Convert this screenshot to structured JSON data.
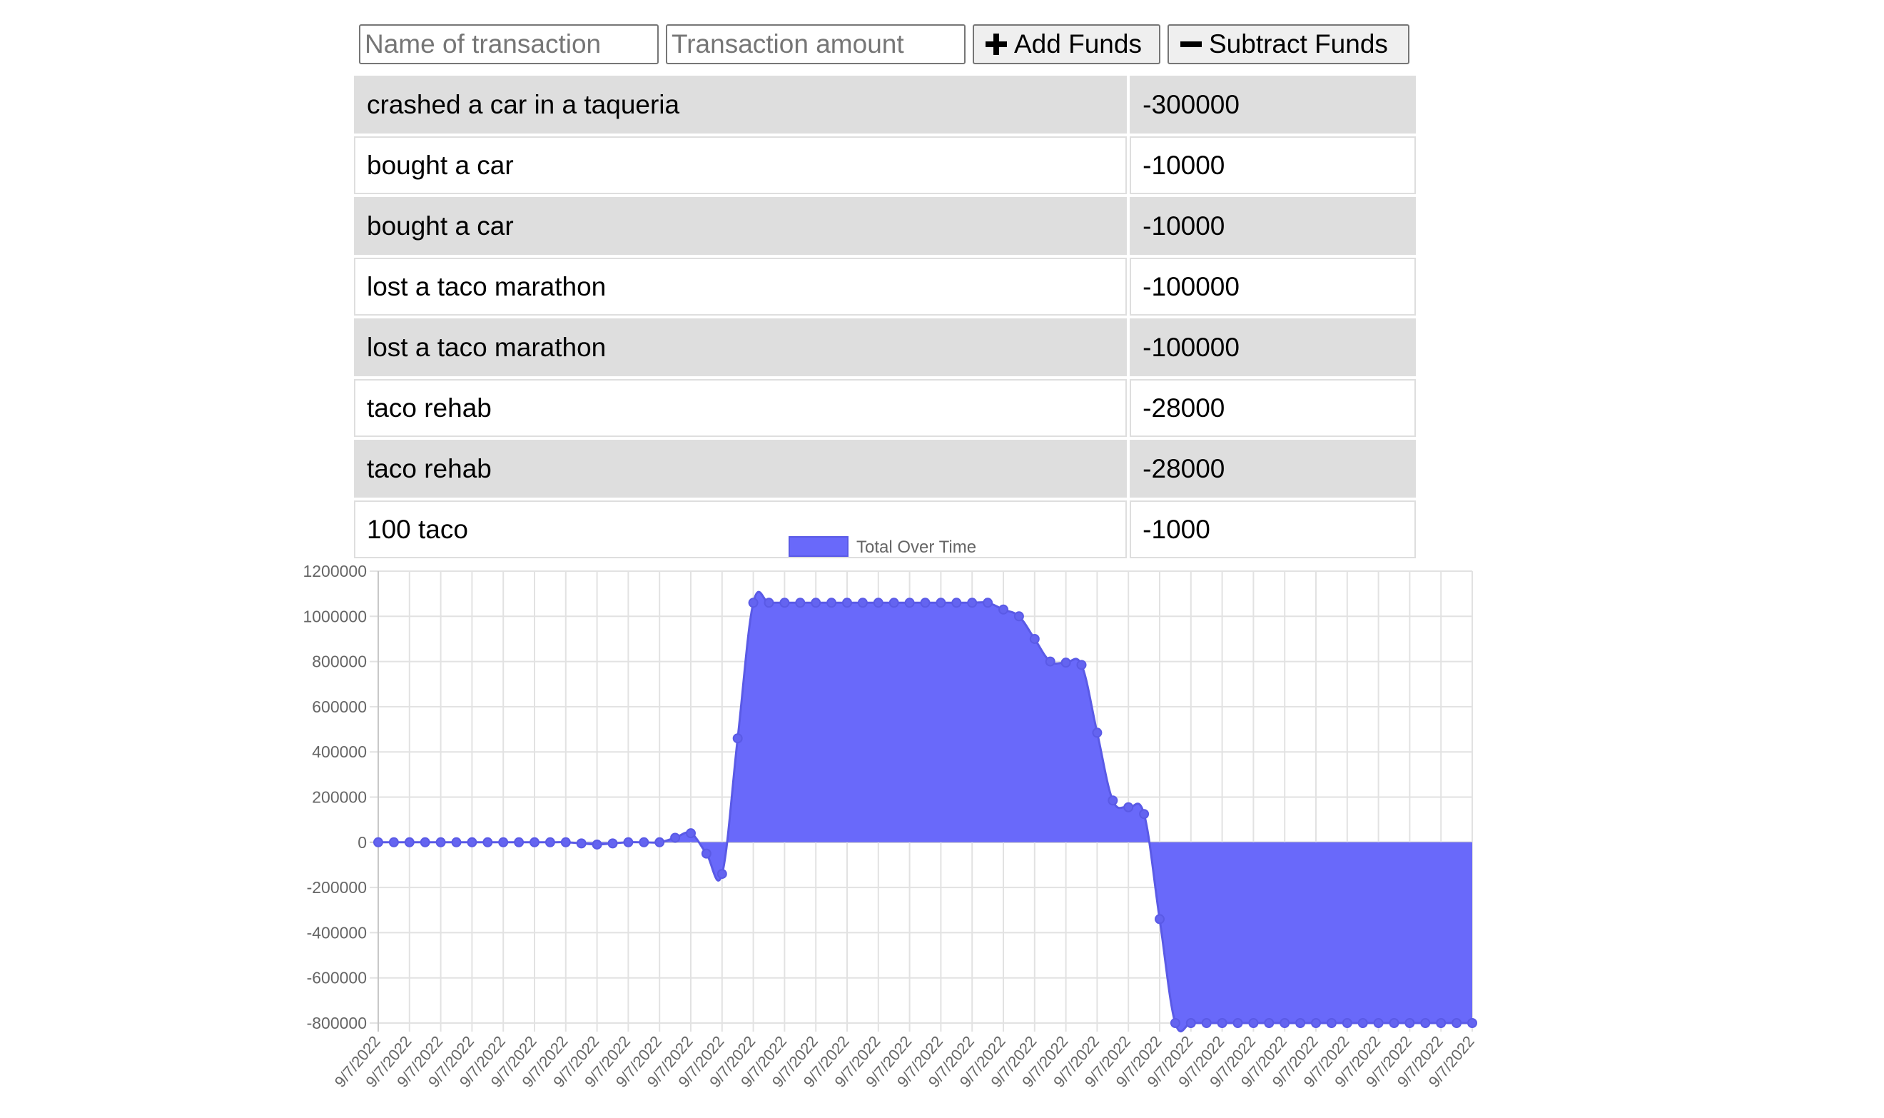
{
  "form": {
    "name_placeholder": "Name of transaction",
    "amount_placeholder": "Transaction amount",
    "add_label": "Add Funds",
    "subtract_label": "Subtract Funds",
    "add_icon": "plus-icon",
    "subtract_icon": "minus-icon"
  },
  "transactions": [
    {
      "name": "crashed a car in a taqueria",
      "amount": "-300000"
    },
    {
      "name": "bought a car",
      "amount": "-10000"
    },
    {
      "name": "bought a car",
      "amount": "-10000"
    },
    {
      "name": "lost a taco marathon",
      "amount": "-100000"
    },
    {
      "name": "lost a taco marathon",
      "amount": "-100000"
    },
    {
      "name": "taco rehab",
      "amount": "-28000"
    },
    {
      "name": "taco rehab",
      "amount": "-28000"
    },
    {
      "name": "100 taco",
      "amount": "-1000"
    }
  ],
  "colors": {
    "fill": "#6969fa",
    "point": "#6464f0",
    "line": "#5a5ae6",
    "grid": "#e2e2e2",
    "row_alt": "#dedede"
  },
  "chart_data": {
    "type": "area",
    "legend_position": "top-center",
    "grid": true,
    "ylim": [
      -800000,
      1200000
    ],
    "y_ticks": [
      "1200000",
      "1000000",
      "800000",
      "600000",
      "400000",
      "200000",
      "0",
      "-200000",
      "-400000",
      "-600000",
      "-800000"
    ],
    "x": [
      "9/7/2022",
      "9/7/2022",
      "9/7/2022",
      "9/7/2022",
      "9/7/2022",
      "9/7/2022",
      "9/7/2022",
      "9/7/2022",
      "9/7/2022",
      "9/7/2022",
      "9/7/2022",
      "9/7/2022",
      "9/7/2022",
      "9/7/2022",
      "9/7/2022",
      "9/7/2022",
      "9/7/2022",
      "9/7/2022",
      "9/7/2022",
      "9/7/2022",
      "9/7/2022",
      "9/7/2022",
      "9/7/2022",
      "9/7/2022",
      "9/7/2022",
      "9/7/2022",
      "9/7/2022",
      "9/7/2022",
      "9/7/2022",
      "9/7/2022",
      "9/7/2022",
      "9/7/2022",
      "9/7/2022",
      "9/7/2022",
      "9/7/2022",
      "9/7/2022",
      "9/7/2022",
      "9/7/2022",
      "9/7/2022",
      "9/7/2022",
      "9/7/2022",
      "9/7/2022",
      "9/7/2022",
      "9/7/2022",
      "9/7/2022",
      "9/7/2022",
      "9/7/2022",
      "9/7/2022",
      "9/7/2022",
      "9/7/2022",
      "9/7/2022",
      "9/7/2022",
      "9/7/2022",
      "9/7/2022",
      "9/7/2022",
      "9/7/2022",
      "9/7/2022",
      "9/7/2022",
      "9/7/2022",
      "9/7/2022",
      "9/7/2022",
      "9/7/2022",
      "9/7/2022",
      "9/7/2022",
      "9/7/2022",
      "9/7/2022",
      "9/7/2022",
      "9/7/2022",
      "9/7/2022",
      "9/7/2022",
      "9/7/2022"
    ],
    "series": [
      {
        "name": "Total Over Time",
        "values": [
          0,
          0,
          0,
          0,
          0,
          0,
          0,
          0,
          0,
          0,
          0,
          0,
          0,
          -5000,
          -10000,
          -5000,
          0,
          0,
          0,
          20000,
          40000,
          -50000,
          -140000,
          460000,
          1060000,
          1060000,
          1060000,
          1060000,
          1060000,
          1060000,
          1060000,
          1060000,
          1060000,
          1060000,
          1060000,
          1060000,
          1060000,
          1060000,
          1060000,
          1060000,
          1030000,
          1000000,
          900000,
          800000,
          795000,
          785000,
          485000,
          185000,
          155000,
          125000,
          -340000,
          -800000,
          -800000,
          -800000,
          -800000,
          -800000,
          -800000,
          -800000,
          -800000,
          -800000,
          -800000,
          -800000,
          -800000,
          -800000,
          -800000,
          -800000,
          -800000,
          -800000,
          -800000,
          -800000,
          -800000
        ]
      }
    ],
    "x_tick_every": 2
  }
}
